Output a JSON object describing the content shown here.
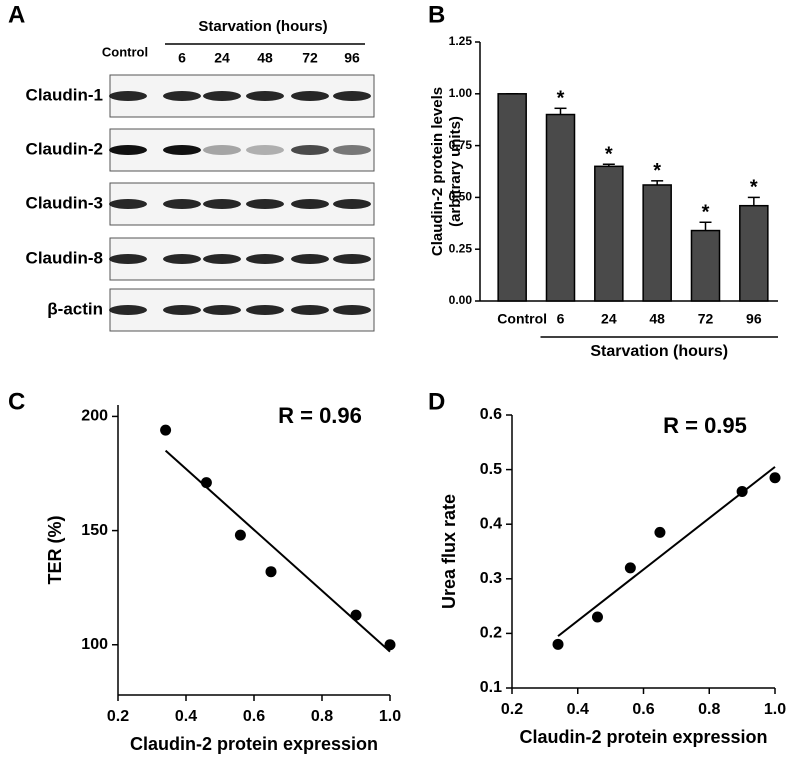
{
  "blot": {
    "panel_label": "A",
    "group_label": "Starvation (hours)",
    "lanes": [
      "Control",
      "6",
      "24",
      "48",
      "72",
      "96"
    ],
    "rows": [
      "Claudin-1",
      "Claudin-2",
      "Claudin-3",
      "Claudin-8",
      "β-actin"
    ]
  },
  "chart_data": [
    {
      "type": "bar",
      "panel_label": "B",
      "ylabel": [
        "Claudin-2 protein levels",
        "(arbitrary units)"
      ],
      "categories": [
        "Control",
        "6",
        "24",
        "48",
        "72",
        "96"
      ],
      "values": [
        1.0,
        0.9,
        0.65,
        0.56,
        0.34,
        0.46
      ],
      "errors": [
        0,
        0.03,
        0.01,
        0.02,
        0.04,
        0.04
      ],
      "significance": [
        null,
        "*",
        "*",
        "*",
        "*",
        "*"
      ],
      "group_label": "Starvation (hours)",
      "color": "#4a4a4a",
      "ylim": [
        0,
        1.25
      ],
      "yticks": [
        {
          "value": 0,
          "label": "0.00"
        },
        {
          "value": 0.25,
          "label": "0.25"
        },
        {
          "value": 0.5,
          "label": "0.50"
        },
        {
          "value": 0.75,
          "label": "0.75"
        },
        {
          "value": 1,
          "label": "1.00"
        },
        {
          "value": 1.25,
          "label": "1.25"
        }
      ]
    },
    {
      "type": "scatter",
      "panel_label": "C",
      "xlabel": "Claudin-2 protein expression",
      "ylabel": "TER (%)",
      "annotation": "R = 0.96",
      "x": [
        0.34,
        0.46,
        0.56,
        0.65,
        0.9,
        1.0
      ],
      "values": [
        194,
        171,
        148,
        132,
        113,
        100
      ],
      "fit": {
        "x": [
          0.34,
          1.0
        ],
        "y": [
          185,
          97
        ]
      },
      "color": "#000000",
      "xlim": [
        0.2,
        1.0
      ],
      "xticks": [
        0.2,
        0.4,
        0.6,
        0.8,
        {
          "value": 1,
          "label": "1.0"
        }
      ],
      "ylim": [
        78,
        205
      ],
      "yticks": [
        100,
        150,
        200
      ]
    },
    {
      "type": "scatter",
      "panel_label": "D",
      "xlabel": "Claudin-2 protein expression",
      "ylabel": "Urea flux rate",
      "annotation": "R = 0.95",
      "x": [
        0.34,
        0.46,
        0.56,
        0.65,
        0.9,
        1.0
      ],
      "values": [
        0.18,
        0.23,
        0.32,
        0.385,
        0.46,
        0.485
      ],
      "fit": {
        "x": [
          0.34,
          1.0
        ],
        "y": [
          0.195,
          0.505
        ]
      },
      "color": "#000000",
      "xlim": [
        0.2,
        1.0
      ],
      "xticks": [
        0.2,
        0.4,
        0.6,
        0.8,
        {
          "value": 1,
          "label": "1.0"
        }
      ],
      "ylim": [
        0.1,
        0.6
      ],
      "yticks": [
        0.1,
        0.2,
        0.3,
        0.4,
        0.5,
        0.6
      ]
    }
  ]
}
